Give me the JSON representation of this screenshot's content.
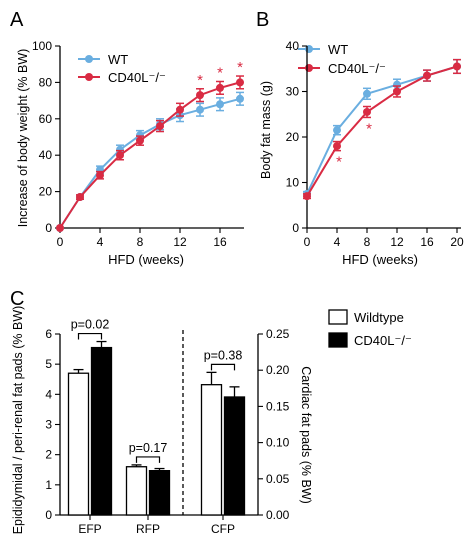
{
  "colors": {
    "wt": "#6aaee0",
    "ko": "#d92b43",
    "axis": "#000000"
  },
  "chart_data": [
    {
      "panel": "A",
      "type": "line",
      "xlabel": "HFD (weeks)",
      "ylabel": "Increase of body weight (% BW)",
      "xlim": [
        0,
        18
      ],
      "ylim": [
        0,
        100
      ],
      "xticks": [
        "0",
        "4",
        "8",
        "12",
        "16"
      ],
      "yticks": [
        "0",
        "20",
        "40",
        "60",
        "80",
        "100"
      ],
      "x": [
        0,
        2,
        4,
        6,
        8,
        10,
        12,
        14,
        16,
        18
      ],
      "series": [
        {
          "name": "WT",
          "values": [
            0,
            17,
            32,
            43,
            51,
            57,
            62,
            65,
            68,
            71
          ],
          "err": [
            0,
            1.2,
            2,
            2.5,
            2.5,
            3,
            3.5,
            3.5,
            3.5,
            3.5
          ]
        },
        {
          "name": "CD40L⁻/⁻",
          "values": [
            0,
            17,
            29,
            40,
            48,
            56,
            65,
            73,
            77,
            80
          ],
          "err": [
            0,
            1.2,
            2,
            2.5,
            2.5,
            3,
            3.5,
            3.5,
            3.5,
            3.5
          ]
        }
      ],
      "significance_x": [
        14,
        16,
        18
      ],
      "significance_symbol": "*"
    },
    {
      "panel": "B",
      "type": "line",
      "xlabel": "HFD (weeks)",
      "ylabel": "Body fat mass (g)",
      "xlim": [
        0,
        20
      ],
      "ylim": [
        0,
        40
      ],
      "xticks": [
        "0",
        "4",
        "8",
        "12",
        "16",
        "20"
      ],
      "yticks": [
        "0",
        "10",
        "20",
        "30",
        "40"
      ],
      "x": [
        0,
        4,
        8,
        12,
        16,
        20
      ],
      "series": [
        {
          "name": "WT",
          "values": [
            7.5,
            21.5,
            29.5,
            31.5,
            33.5,
            35.5
          ],
          "err": [
            0.5,
            1,
            1.2,
            1.2,
            1.2,
            1.5
          ]
        },
        {
          "name": "CD40L⁻/⁻",
          "values": [
            7,
            18,
            25.5,
            30,
            33.5,
            35.5
          ],
          "err": [
            0.5,
            1,
            1.2,
            1.2,
            1.2,
            1.5
          ]
        }
      ],
      "significance_x": [
        4,
        8
      ],
      "significance_symbol": "*"
    },
    {
      "panel": "C",
      "type": "bar",
      "ylabel_left": "Epididymidal / peri-renal fat pads (% BW)",
      "ylabel_right": "Cardiac fat pads (% BW)",
      "ylim_left": [
        0,
        6
      ],
      "ylim_right": [
        0,
        0.25
      ],
      "yticks_left": [
        "0",
        "1",
        "2",
        "3",
        "4",
        "5",
        "6"
      ],
      "yticks_right": [
        "0.00",
        "0.05",
        "0.10",
        "0.15",
        "0.20",
        "0.25"
      ],
      "categories": [
        "EFP",
        "RFP",
        "CFP"
      ],
      "axis_for_category": [
        "left",
        "left",
        "right"
      ],
      "series": [
        {
          "name": "Wildtype",
          "values": [
            4.7,
            1.6,
            0.18
          ],
          "err": [
            0.12,
            0.06,
            0.017
          ]
        },
        {
          "name": "CD40L⁻/⁻",
          "values": [
            5.55,
            1.47,
            0.163
          ],
          "err": [
            0.2,
            0.07,
            0.014
          ]
        }
      ],
      "annotations": [
        "p=0.02",
        "p=0.17",
        "p=0.38"
      ],
      "legend": [
        "Wildtype",
        "CD40L⁻/⁻"
      ]
    }
  ],
  "panel_letters": [
    "A",
    "B",
    "C"
  ]
}
